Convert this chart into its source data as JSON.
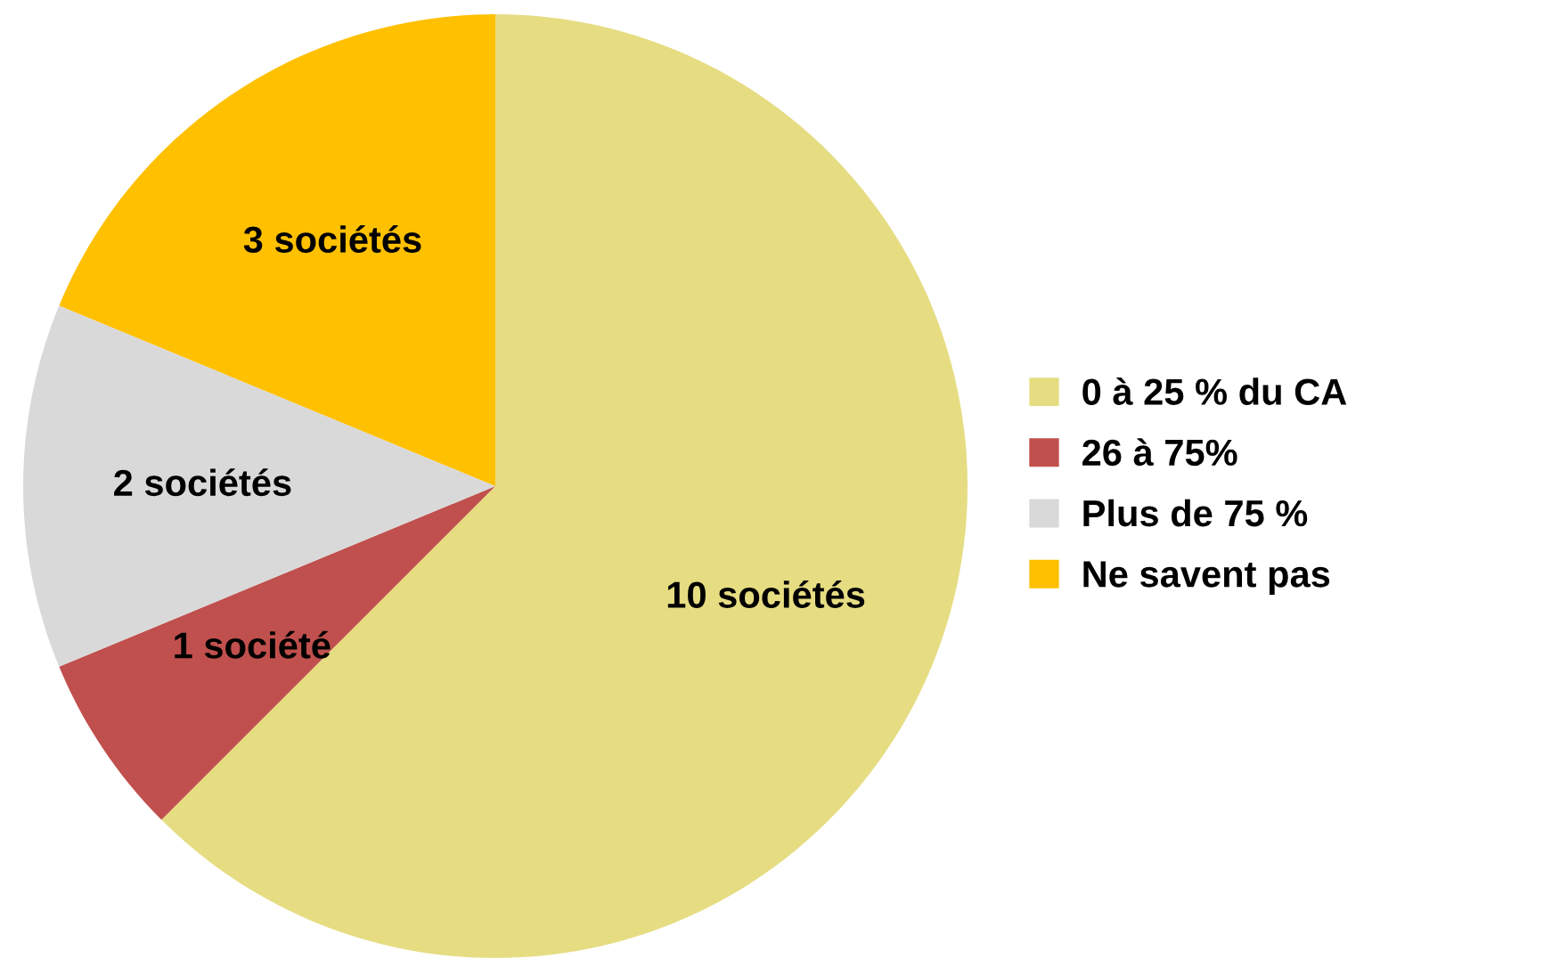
{
  "chart_data": {
    "type": "pie",
    "categories": [
      "0 à 25 % du CA",
      "26 à 75%",
      "Plus de 75 %",
      "Ne savent pas"
    ],
    "values": [
      10,
      1,
      2,
      3
    ],
    "value_labels": [
      "10 sociétés",
      "1 société",
      "2 sociétés",
      "3 sociétés"
    ],
    "colors": [
      "#e6dc82",
      "#c0504d",
      "#d9d9d9",
      "#ffc000"
    ],
    "legend": "right"
  }
}
